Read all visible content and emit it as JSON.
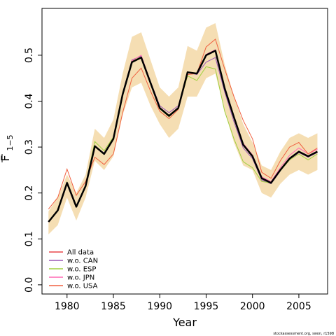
{
  "chart_data": {
    "type": "line",
    "xlabel": "Year",
    "ylabel_main": "F",
    "ylabel_sub": "1−5",
    "xlim": [
      1977.3,
      2008.1
    ],
    "ylim": [
      -0.02,
      0.602
    ],
    "xticks": [
      1980,
      1985,
      1990,
      1995,
      2000,
      2005
    ],
    "xtick_labels": [
      "1980",
      "1985",
      "1990",
      "1995",
      "2000",
      "2005"
    ],
    "yticks": [
      0.0,
      0.1,
      0.2,
      0.3,
      0.4,
      0.5
    ],
    "ytick_labels": [
      "0.0",
      "0.1",
      "0.2",
      "0.3",
      "0.4",
      "0.5"
    ],
    "x": [
      1978,
      1979,
      1980,
      1981,
      1982,
      1983,
      1984,
      1985,
      1986,
      1987,
      1988,
      1989,
      1990,
      1991,
      1992,
      1993,
      1994,
      1995,
      1996,
      1997,
      1998,
      1999,
      2000,
      2001,
      2002,
      2003,
      2004,
      2005,
      2006,
      2007
    ],
    "band": {
      "color": "#f5deb3",
      "upper": [
        0.16,
        0.19,
        0.24,
        0.2,
        0.24,
        0.34,
        0.32,
        0.36,
        0.46,
        0.54,
        0.55,
        0.49,
        0.43,
        0.41,
        0.43,
        0.52,
        0.51,
        0.56,
        0.57,
        0.48,
        0.41,
        0.35,
        0.31,
        0.26,
        0.25,
        0.29,
        0.32,
        0.33,
        0.32,
        0.33
      ],
      "lower": [
        0.11,
        0.13,
        0.19,
        0.14,
        0.19,
        0.27,
        0.25,
        0.28,
        0.37,
        0.43,
        0.44,
        0.39,
        0.35,
        0.32,
        0.34,
        0.41,
        0.41,
        0.45,
        0.46,
        0.38,
        0.31,
        0.26,
        0.25,
        0.2,
        0.19,
        0.22,
        0.24,
        0.25,
        0.24,
        0.25
      ]
    },
    "estimate": {
      "color": "#000000",
      "values": [
        0.137,
        0.162,
        0.222,
        0.17,
        0.215,
        0.302,
        0.285,
        0.318,
        0.415,
        0.485,
        0.495,
        0.44,
        0.385,
        0.368,
        0.385,
        0.463,
        0.46,
        0.5,
        0.51,
        0.428,
        0.365,
        0.305,
        0.28,
        0.232,
        0.222,
        0.25,
        0.275,
        0.29,
        0.28,
        0.29
      ]
    },
    "series": [
      {
        "name": "All data",
        "color": "#e8464a",
        "values": [
          0.137,
          0.162,
          0.222,
          0.17,
          0.215,
          0.302,
          0.285,
          0.318,
          0.415,
          0.485,
          0.495,
          0.44,
          0.385,
          0.368,
          0.385,
          0.463,
          0.46,
          0.5,
          0.51,
          0.428,
          0.365,
          0.305,
          0.28,
          0.232,
          0.222,
          0.25,
          0.275,
          0.29,
          0.28,
          0.29
        ]
      },
      {
        "name": "w.o. CAN",
        "color": "#9b59b6",
        "values": [
          0.137,
          0.163,
          0.224,
          0.172,
          0.216,
          0.302,
          0.287,
          0.319,
          0.418,
          0.49,
          0.498,
          0.443,
          0.39,
          0.375,
          0.39,
          0.462,
          0.458,
          0.485,
          0.495,
          0.42,
          0.355,
          0.298,
          0.275,
          0.228,
          0.22,
          0.248,
          0.272,
          0.288,
          0.278,
          0.288
        ]
      },
      {
        "name": "w.o. ESP",
        "color": "#a0d040",
        "values": [
          0.138,
          0.163,
          0.224,
          0.17,
          0.218,
          0.312,
          0.292,
          0.322,
          0.418,
          0.488,
          0.496,
          0.44,
          0.383,
          0.366,
          0.385,
          0.455,
          0.445,
          0.475,
          0.47,
          0.378,
          0.318,
          0.268,
          0.255,
          0.225,
          0.222,
          0.248,
          0.272,
          0.285,
          0.272,
          0.285
        ]
      },
      {
        "name": "w.o. JPN",
        "color": "#ff69b4",
        "values": [
          0.137,
          0.162,
          0.222,
          0.17,
          0.215,
          0.303,
          0.285,
          0.318,
          0.416,
          0.488,
          0.5,
          0.442,
          0.385,
          0.368,
          0.386,
          0.462,
          0.46,
          0.502,
          0.512,
          0.43,
          0.368,
          0.308,
          0.283,
          0.235,
          0.225,
          0.255,
          0.282,
          0.298,
          0.285,
          0.295
        ]
      },
      {
        "name": "w.o. USA",
        "color": "#f06040",
        "values": [
          0.165,
          0.19,
          0.252,
          0.195,
          0.225,
          0.278,
          0.262,
          0.285,
          0.375,
          0.45,
          0.472,
          0.422,
          0.378,
          0.362,
          0.382,
          0.458,
          0.46,
          0.518,
          0.535,
          0.47,
          0.41,
          0.358,
          0.318,
          0.245,
          0.232,
          0.27,
          0.3,
          0.31,
          0.285,
          0.298
        ]
      }
    ],
    "legend_position": "bottom-left"
  },
  "credit": "stockassessment.org, swon, r1598"
}
